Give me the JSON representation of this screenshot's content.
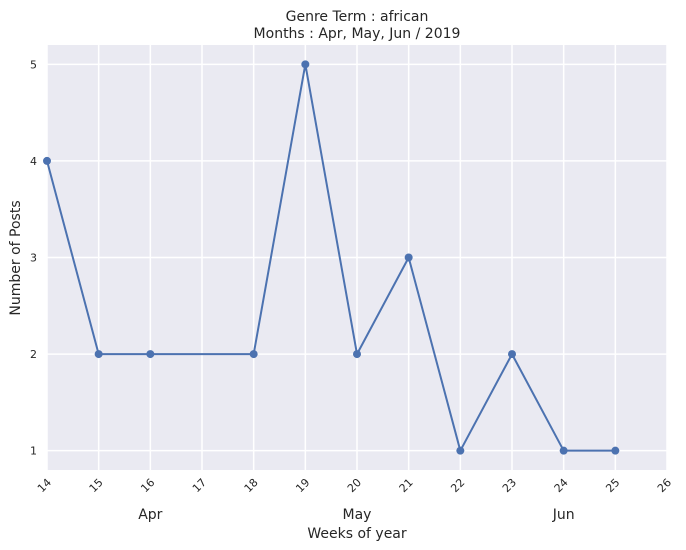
{
  "chart_data": {
    "type": "line",
    "title": "Genre Term : african",
    "subtitle": "Months : Apr, May, Jun / 2019",
    "xlabel": "Weeks of year",
    "ylabel": "Number of Posts",
    "x": [
      14,
      15,
      16,
      18,
      19,
      20,
      21,
      22,
      23,
      24,
      25
    ],
    "y": [
      4,
      2,
      2,
      2,
      5,
      2,
      3,
      1,
      2,
      1,
      1
    ],
    "xlim": [
      14,
      26
    ],
    "ylim": [
      0.8,
      5.2
    ],
    "x_ticks": [
      "14",
      "15",
      "16",
      "17",
      "18",
      "19",
      "20",
      "21",
      "22",
      "23",
      "24",
      "25",
      "26"
    ],
    "y_ticks": [
      "1",
      "2",
      "3",
      "4",
      "5"
    ],
    "month_labels": [
      {
        "label": "Apr",
        "week": 16
      },
      {
        "label": "May",
        "week": 20
      },
      {
        "label": "Jun",
        "week": 24
      }
    ],
    "grid": true,
    "line_color": "#4c72b0",
    "background_color": "#eaeaf2",
    "grid_color": "#ffffff"
  }
}
